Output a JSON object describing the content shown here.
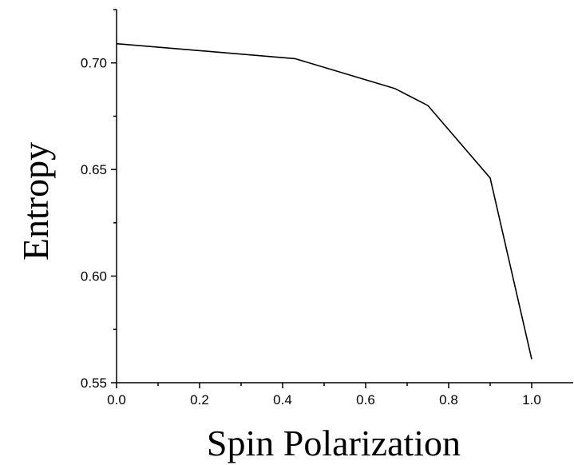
{
  "chart_data": {
    "type": "line",
    "xlabel": "Spin Polarization",
    "ylabel": "Entropy",
    "xlim": [
      0.0,
      1.1
    ],
    "ylim": [
      0.55,
      0.725
    ],
    "x_major_ticks": [
      0.0,
      0.2,
      0.4,
      0.6,
      0.8,
      1.0
    ],
    "x_tick_labels": [
      "0.0",
      "0.2",
      "0.4",
      "0.6",
      "0.8",
      "1.0"
    ],
    "x_minor_ticks": [
      0.1,
      0.3,
      0.5,
      0.7,
      0.9
    ],
    "y_major_ticks": [
      0.55,
      0.6,
      0.65,
      0.7
    ],
    "y_tick_labels": [
      "0.55",
      "0.60",
      "0.65",
      "0.70"
    ],
    "y_minor_ticks": [
      0.575,
      0.625,
      0.675,
      0.725
    ],
    "grid": false,
    "legend": "none",
    "series": [
      {
        "color": "#000000",
        "x": [
          0.0,
          0.43,
          0.67,
          0.75,
          0.9,
          1.0
        ],
        "y": [
          0.709,
          0.702,
          0.688,
          0.68,
          0.646,
          0.561
        ]
      }
    ]
  }
}
